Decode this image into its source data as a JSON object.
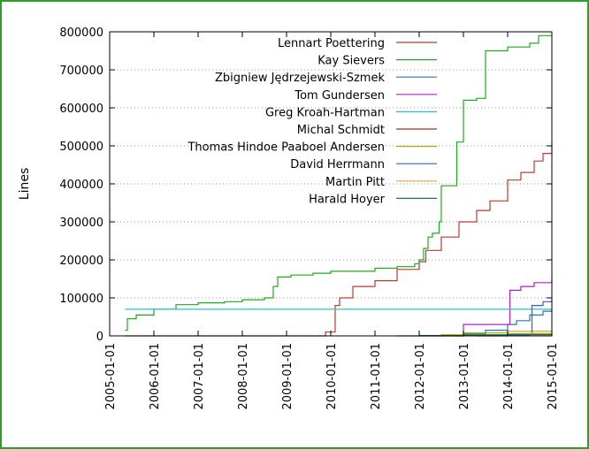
{
  "chart_data": {
    "type": "line",
    "title": "",
    "xlabel": "",
    "ylabel": "Lines",
    "xlim": [
      2005.0,
      2015.0
    ],
    "ylim": [
      0,
      800000
    ],
    "grid": "horizontal-dotted",
    "legend_position": "top-right",
    "x_ticks": [
      "2005-01-01",
      "2006-01-01",
      "2007-01-01",
      "2008-01-01",
      "2009-01-01",
      "2010-01-01",
      "2011-01-01",
      "2012-01-01",
      "2013-01-01",
      "2014-01-01",
      "2015-01-01"
    ],
    "y_ticks": [
      0,
      100000,
      200000,
      300000,
      400000,
      500000,
      600000,
      700000,
      800000
    ],
    "y_tick_labels": [
      "0",
      "100000",
      "200000",
      "300000",
      "400000",
      "500000",
      "600000",
      "700000",
      "800000"
    ],
    "series": [
      {
        "name": "Lennart Poettering",
        "color": "#c0392b",
        "x": [
          2005.35,
          2009.8,
          2009.88,
          2010.1,
          2010.2,
          2010.5,
          2011.0,
          2011.5,
          2012.0,
          2012.15,
          2012.5,
          2012.9,
          2013.3,
          2013.6,
          2014.0,
          2014.3,
          2014.6,
          2014.8,
          2015.0
        ],
        "y": [
          0,
          0,
          10000,
          80000,
          100000,
          130000,
          145000,
          175000,
          195000,
          225000,
          260000,
          300000,
          330000,
          355000,
          410000,
          430000,
          460000,
          480000,
          510000
        ]
      },
      {
        "name": "Kay Sievers",
        "color": "#21a821",
        "x": [
          2005.35,
          2005.4,
          2005.6,
          2006.0,
          2006.5,
          2007.0,
          2007.6,
          2008.0,
          2008.5,
          2008.7,
          2008.8,
          2009.1,
          2009.6,
          2010.0,
          2011.0,
          2011.5,
          2011.9,
          2012.0,
          2012.1,
          2012.2,
          2012.3,
          2012.45,
          2012.5,
          2012.5,
          2012.8,
          2012.85,
          2013.0,
          2013.3,
          2013.5,
          2014.0,
          2014.5,
          2014.7,
          2015.0
        ],
        "y": [
          15000,
          45000,
          55000,
          70000,
          82000,
          87000,
          90000,
          95000,
          100000,
          130000,
          155000,
          160000,
          165000,
          170000,
          178000,
          182000,
          190000,
          200000,
          230000,
          260000,
          270000,
          300000,
          390000,
          395000,
          395000,
          510000,
          620000,
          625000,
          750000,
          760000,
          770000,
          790000,
          790000
        ]
      },
      {
        "name": "Zbigniew Jędrzejewski-Szmek",
        "color": "#1f7ab5",
        "x": [
          2012.4,
          2012.5,
          2013.0,
          2013.5,
          2014.0,
          2014.2,
          2014.5,
          2014.8,
          2015.0
        ],
        "y": [
          0,
          2000,
          5000,
          15000,
          30000,
          40000,
          55000,
          65000,
          70000
        ]
      },
      {
        "name": "Tom Gundersen",
        "color": "#b020c8",
        "x": [
          2012.8,
          2013.0,
          2013.5,
          2014.0,
          2014.05,
          2014.3,
          2014.6,
          2015.0
        ],
        "y": [
          0,
          30000,
          30000,
          30000,
          120000,
          130000,
          140000,
          152000
        ]
      },
      {
        "name": "Greg Kroah-Hartman",
        "color": "#22c8c8",
        "x": [
          2005.35,
          2015.0
        ],
        "y": [
          70000,
          70000
        ]
      },
      {
        "name": "Michal Schmidt",
        "color": "#a03020",
        "x": [
          2012.0,
          2013.0,
          2014.0,
          2015.0
        ],
        "y": [
          0,
          1500,
          3000,
          6000
        ]
      },
      {
        "name": "Thomas Hindoe Paaboel Andersen",
        "color": "#b8a820",
        "x": [
          2012.0,
          2012.5,
          2013.0,
          2014.0,
          2015.0
        ],
        "y": [
          0,
          3000,
          8000,
          12000,
          15000
        ]
      },
      {
        "name": "David Herrmann",
        "color": "#3060c0",
        "x": [
          2013.3,
          2014.0,
          2014.5,
          2014.55,
          2014.8,
          2015.0
        ],
        "y": [
          0,
          2000,
          5000,
          80000,
          90000,
          95000
        ]
      },
      {
        "name": "Martin Pitt",
        "color": "#d8b040",
        "x": [
          2012.5,
          2013.0,
          2014.0,
          2015.0
        ],
        "y": [
          0,
          3000,
          6000,
          9000
        ]
      },
      {
        "name": "Harald Hoyer",
        "color": "#1d7a3e",
        "x": [
          2011.5,
          2012.0,
          2013.0,
          2014.0,
          2015.0
        ],
        "y": [
          0,
          1000,
          2500,
          4000,
          5500
        ]
      }
    ]
  }
}
